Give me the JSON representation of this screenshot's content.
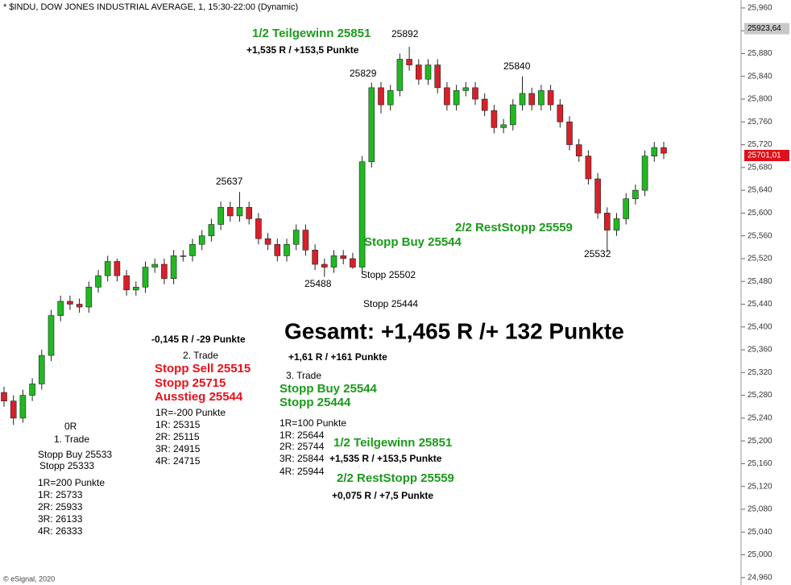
{
  "header": "* $INDU, DOW JONES INDUSTRIAL AVERAGE, 1, 15:30-22:00 (Dynamic)",
  "footer": "© eSignal, 2020",
  "chart_data": {
    "type": "candlestick",
    "up_color": "#22b822",
    "down_color": "#d8202a",
    "ylim": [
      24947,
      25974
    ],
    "yticks": [
      {
        "value": 24960,
        "label": "24,960"
      },
      {
        "value": 25000,
        "label": "25,000"
      },
      {
        "value": 25040,
        "label": "25,040"
      },
      {
        "value": 25080,
        "label": "25,080"
      },
      {
        "value": 25120,
        "label": "25,120"
      },
      {
        "value": 25160,
        "label": "25,160"
      },
      {
        "value": 25200,
        "label": "25,200"
      },
      {
        "value": 25240,
        "label": "25,240"
      },
      {
        "value": 25280,
        "label": "25,280"
      },
      {
        "value": 25320,
        "label": "25,320"
      },
      {
        "value": 25360,
        "label": "25,360"
      },
      {
        "value": 25400,
        "label": "25,400"
      },
      {
        "value": 25440,
        "label": "25,440"
      },
      {
        "value": 25480,
        "label": "25,480"
      },
      {
        "value": 25520,
        "label": "25,520"
      },
      {
        "value": 25560,
        "label": "25,560"
      },
      {
        "value": 25600,
        "label": "25,600"
      },
      {
        "value": 25640,
        "label": "25,640"
      },
      {
        "value": 25680,
        "label": "25,680"
      },
      {
        "value": 25720,
        "label": "25,720"
      },
      {
        "value": 25760,
        "label": "25,760"
      },
      {
        "value": 25800,
        "label": "25,800"
      },
      {
        "value": 25840,
        "label": "25,840"
      },
      {
        "value": 25880,
        "label": "25,880"
      },
      {
        "value": 25920,
        "label": "25,920"
      },
      {
        "value": 25960,
        "label": "25,960"
      }
    ],
    "price_markers": [
      {
        "value": 25923.64,
        "label": "25923,64",
        "color": "#c8c8c8"
      },
      {
        "value": 25701.01,
        "label": "25701,01",
        "color": "#e0101a"
      }
    ],
    "open": [
      25285,
      25270,
      25240,
      25280,
      25300,
      25350,
      25420,
      25445,
      25440,
      25435,
      25470,
      25490,
      25515,
      25490,
      25465,
      25470,
      25505,
      25510,
      25485,
      25525,
      25525,
      25545,
      25560,
      25580,
      25610,
      25595,
      25610,
      25590,
      25555,
      25545,
      25525,
      25545,
      25570,
      25535,
      25510,
      25505,
      25525,
      25520,
      25505,
      25690,
      25820,
      25790,
      25815,
      25870,
      25860,
      25835,
      25860,
      25820,
      25790,
      25815,
      25820,
      25800,
      25780,
      25750,
      25755,
      25790,
      25810,
      25790,
      25815,
      25790,
      25760,
      25720,
      25700,
      25660,
      25600,
      25570,
      25590,
      25625,
      25640,
      25700,
      25715
    ],
    "high": [
      25295,
      25280,
      25290,
      25310,
      25360,
      25430,
      25455,
      25455,
      25450,
      25480,
      25500,
      25525,
      25520,
      25500,
      25480,
      25515,
      25520,
      25520,
      25535,
      25535,
      25555,
      25570,
      25590,
      25620,
      25620,
      25637,
      25620,
      25600,
      25565,
      25555,
      25555,
      25580,
      25580,
      25545,
      25520,
      25535,
      25535,
      25530,
      25700,
      25829,
      25830,
      25825,
      25880,
      25892,
      25870,
      25870,
      25870,
      25830,
      25825,
      25830,
      25830,
      25810,
      25790,
      25765,
      25800,
      25840,
      25820,
      25825,
      25825,
      25800,
      25770,
      25730,
      25710,
      25670,
      25610,
      25600,
      25635,
      25650,
      25710,
      25725,
      25725
    ],
    "low": [
      25260,
      25228,
      25232,
      25270,
      25290,
      25340,
      25410,
      25430,
      25425,
      25425,
      25460,
      25480,
      25480,
      25455,
      25455,
      25460,
      25495,
      25475,
      25475,
      25515,
      25515,
      25535,
      25550,
      25570,
      25585,
      25585,
      25580,
      25545,
      25535,
      25515,
      25515,
      25535,
      25525,
      25500,
      25488,
      25495,
      25510,
      25502,
      25495,
      25680,
      25775,
      25780,
      25805,
      25850,
      25825,
      25825,
      25810,
      25780,
      25780,
      25805,
      25790,
      25770,
      25740,
      25740,
      25745,
      25780,
      25780,
      25780,
      25780,
      25750,
      25710,
      25690,
      25650,
      25590,
      25532,
      25560,
      25580,
      25615,
      25630,
      25690,
      25695
    ],
    "close": [
      25270,
      25240,
      25280,
      25300,
      25350,
      25420,
      25445,
      25440,
      25435,
      25470,
      25490,
      25515,
      25490,
      25465,
      25470,
      25505,
      25510,
      25485,
      25525,
      25525,
      25545,
      25560,
      25580,
      25610,
      25595,
      25610,
      25590,
      25555,
      25545,
      25525,
      25545,
      25570,
      25535,
      25510,
      25505,
      25525,
      25520,
      25505,
      25690,
      25820,
      25790,
      25815,
      25870,
      25860,
      25835,
      25860,
      25820,
      25790,
      25815,
      25820,
      25800,
      25780,
      25750,
      25755,
      25790,
      25810,
      25790,
      25815,
      25790,
      25760,
      25720,
      25700,
      25660,
      25600,
      25570,
      25590,
      25625,
      25640,
      25700,
      25715,
      25705
    ],
    "annotations": [
      "1/2 Teilgewinn 25851",
      "25892",
      "+1,535 R / +153,5 Punkte",
      "25829",
      "25840",
      "25637",
      "Stopp Buy 25544",
      "2/2 RestStopp 25559",
      "25532",
      "Stopp 25502",
      "25488",
      "Stopp 25444",
      "Gesamt: +1,465 R /+ 132 Punkte",
      "-0,145 R / -29 Punkte",
      "2. Trade",
      "+1,61 R / +161 Punkte",
      "Stopp Sell 25515",
      "3. Trade",
      "Stopp 25715",
      "Stopp Buy 25544",
      "Ausstieg 25544",
      "Stopp 25444",
      "1R=-200 Punkte",
      "0R",
      "1R=100 Punkte",
      "1R: 25315",
      "1. Trade",
      "1R: 25644",
      "2R: 25115",
      "1/2 Teilgewinn 25851",
      "2R: 25744",
      "3R: 24915",
      "Stopp Buy 25533",
      "+1,535 R / +153,5 Punkte",
      "3R: 25844",
      "4R: 24715",
      "Stopp 25333",
      "4R: 25944",
      "2/2 RestStopp 25559",
      "1R=200 Punkte",
      "1R: 25733",
      "+0,075 R / +7,5 Punkte",
      "2R: 25933",
      "3R: 26133",
      "4R: 26333"
    ]
  }
}
